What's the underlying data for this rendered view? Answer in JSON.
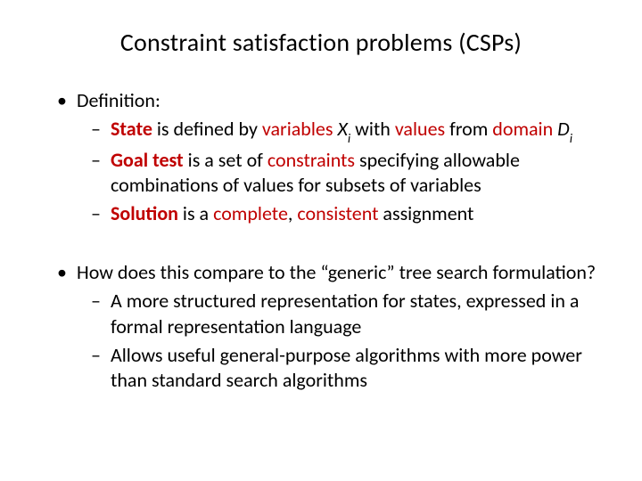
{
  "colors": {
    "text": "#000000",
    "accent": "#c00000",
    "background": "#ffffff"
  },
  "typography": {
    "title_fontsize": 28,
    "body_fontsize": 22,
    "font_family": "Calibri"
  },
  "title": "Constraint satisfaction problems (CSPs)",
  "b1": {
    "heading": "Definition:",
    "s1": {
      "strong": "State",
      "t1": " is defined by ",
      "k1": "variables",
      "var": "X",
      "varsub": "i",
      "t2": " with ",
      "k2": "values",
      "t3": " from ",
      "k3": "domain",
      "dvar": "D",
      "dvarsub": "i"
    },
    "s2": {
      "strong": "Goal test",
      "t1": " is a set of ",
      "k1": "constraints",
      "t2": " specifying allowable combinations of values for subsets of variables"
    },
    "s3": {
      "strong": "Solution",
      "t1": " is a ",
      "k1": "complete",
      "comma": ", ",
      "k2": "consistent",
      "t2": " assignment"
    }
  },
  "b2": {
    "heading": "How does this compare to the “generic” tree search formulation?",
    "s1": "A more structured representation for states, expressed in a formal representation language",
    "s2": "Allows useful general-purpose algorithms with more power than standard search algorithms"
  }
}
